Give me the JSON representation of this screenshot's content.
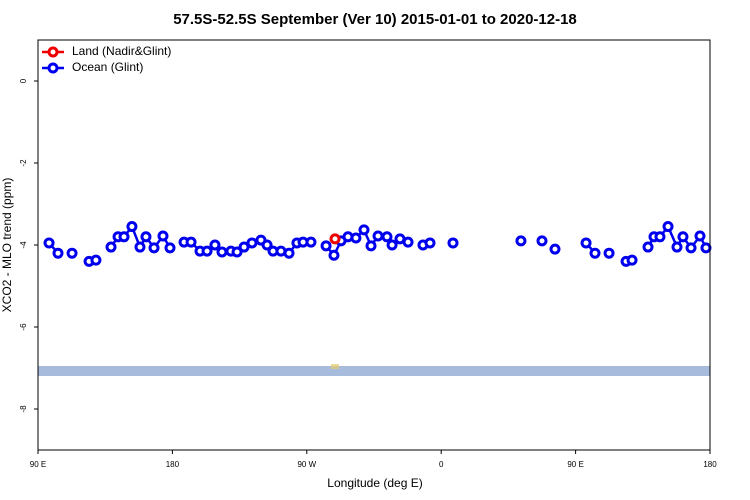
{
  "chart_data": {
    "type": "line",
    "title": "57.5S-52.5S September (Ver 10)   2015-01-01 to 2020-12-18",
    "xlabel": "Longitude (deg E)",
    "ylabel": "XCO2 - MLO trend (ppm)",
    "xlim": [
      90,
      540
    ],
    "xticks": [
      {
        "value": 90,
        "label": "90 E"
      },
      {
        "value": 180,
        "label": "180"
      },
      {
        "value": 270,
        "label": "90 W"
      },
      {
        "value": 360,
        "label": "0"
      },
      {
        "value": 450,
        "label": "90 E"
      },
      {
        "value": 540,
        "label": "180"
      }
    ],
    "ylim": [
      -9,
      1
    ],
    "yticks": [
      0,
      -2,
      -4,
      -6,
      -8
    ],
    "legend": "top-left",
    "series": [
      {
        "name": "Land (Nadir&Glint)",
        "color": "#ee0000",
        "x": [
          288.9
        ],
        "values": [
          -3.85
        ]
      },
      {
        "name": "Ocean (Glint)",
        "color": "#0000ee",
        "x": [
          97.4,
          103.4,
          null,
          112.8,
          null,
          124.2,
          128.8,
          null,
          138.9,
          143.6,
          147.6,
          152.9,
          158.3,
          162.3,
          167.7,
          173.7,
          178.4,
          null,
          187.8,
          192.5,
          198.5,
          203.2,
          208.5,
          213.2,
          219.2,
          223.3,
          228.0,
          233.3,
          239.3,
          243.4,
          247.4,
          252.7,
          258.1,
          263.4,
          267.5,
          272.8,
          null,
          282.9,
          288.2,
          292.9,
          297.6,
          302.9,
          308.3,
          313.0,
          317.7,
          323.7,
          327.1,
          332.4,
          337.8,
          null,
          347.8,
          352.5,
          null,
          367.9,
          null,
          413.4,
          null,
          427.5,
          null,
          436.2,
          null,
          457.0,
          463.0,
          null,
          472.4,
          null,
          483.8,
          487.8,
          null,
          498.5,
          502.5,
          506.5,
          511.9,
          517.9,
          521.9,
          527.3,
          533.3,
          537.3
        ],
        "values": [
          -3.95,
          -4.2,
          null,
          -4.2,
          null,
          -4.4,
          -4.37,
          null,
          -4.05,
          -3.8,
          -3.8,
          -3.55,
          -4.05,
          -3.8,
          -4.07,
          -3.78,
          -4.07,
          null,
          -3.93,
          -3.93,
          -4.15,
          -4.15,
          -4.0,
          -4.17,
          -4.15,
          -4.17,
          -4.05,
          -3.95,
          -3.88,
          -4.0,
          -4.15,
          -4.15,
          -4.2,
          -3.95,
          -3.93,
          -3.93,
          null,
          -4.02,
          -4.25,
          -3.9,
          -3.8,
          -3.83,
          -3.63,
          -4.02,
          -3.78,
          -3.8,
          -4.0,
          -3.85,
          -3.93,
          null,
          -4.0,
          -3.95,
          null,
          -3.95,
          null,
          -3.9,
          null,
          -3.9,
          null,
          -4.1,
          null,
          -3.95,
          -4.2,
          null,
          -4.2,
          null,
          -4.4,
          -4.37,
          null,
          -4.05,
          -3.8,
          -3.8,
          -3.55,
          -4.05,
          -3.8,
          -4.07,
          -3.78,
          -4.07
        ]
      }
    ]
  }
}
